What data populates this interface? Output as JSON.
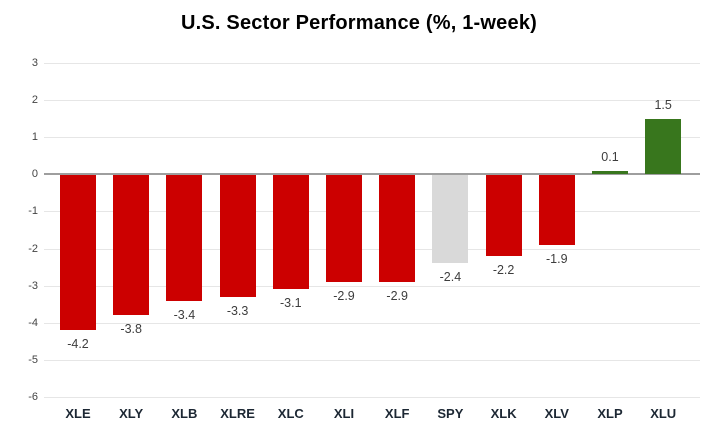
{
  "chart_data": {
    "type": "bar",
    "title": "U.S. Sector Performance (%, 1-week)",
    "categories": [
      "XLE",
      "XLY",
      "XLB",
      "XLRE",
      "XLC",
      "XLI",
      "XLF",
      "SPY",
      "XLK",
      "XLV",
      "XLP",
      "XLU"
    ],
    "values": [
      -4.2,
      -3.8,
      -3.4,
      -3.3,
      -3.1,
      -2.9,
      -2.9,
      -2.4,
      -2.2,
      -1.9,
      0.1,
      1.5
    ],
    "value_labels": [
      "-4.2",
      "-3.8",
      "-3.4",
      "-3.3",
      "-3.1",
      "-2.9",
      "-2.9",
      "-2.4",
      "-2.2",
      "-1.9",
      "0.1",
      "1.5"
    ],
    "bar_colors": [
      "#cc0000",
      "#cc0000",
      "#cc0000",
      "#cc0000",
      "#cc0000",
      "#cc0000",
      "#cc0000",
      "#d9d9d9",
      "#cc0000",
      "#cc0000",
      "#38761d",
      "#38761d"
    ],
    "xlabel": "",
    "ylabel": "",
    "ylim": [
      -6,
      3
    ],
    "y_ticks": [
      3,
      2,
      1,
      0,
      -1,
      -2,
      -3,
      -4,
      -5,
      -6
    ],
    "grid": true,
    "legend": "none",
    "colors": {
      "negative": "#cc0000",
      "positive": "#38761d",
      "benchmark": "#d9d9d9",
      "gridline": "#e6e6e6",
      "zero_line": "#9e9e9e",
      "title_text": "#000000",
      "tick_label": "#444444",
      "category_label": "#1c2733",
      "value_label": "#3d3d3d",
      "background": "#ffffff"
    }
  }
}
